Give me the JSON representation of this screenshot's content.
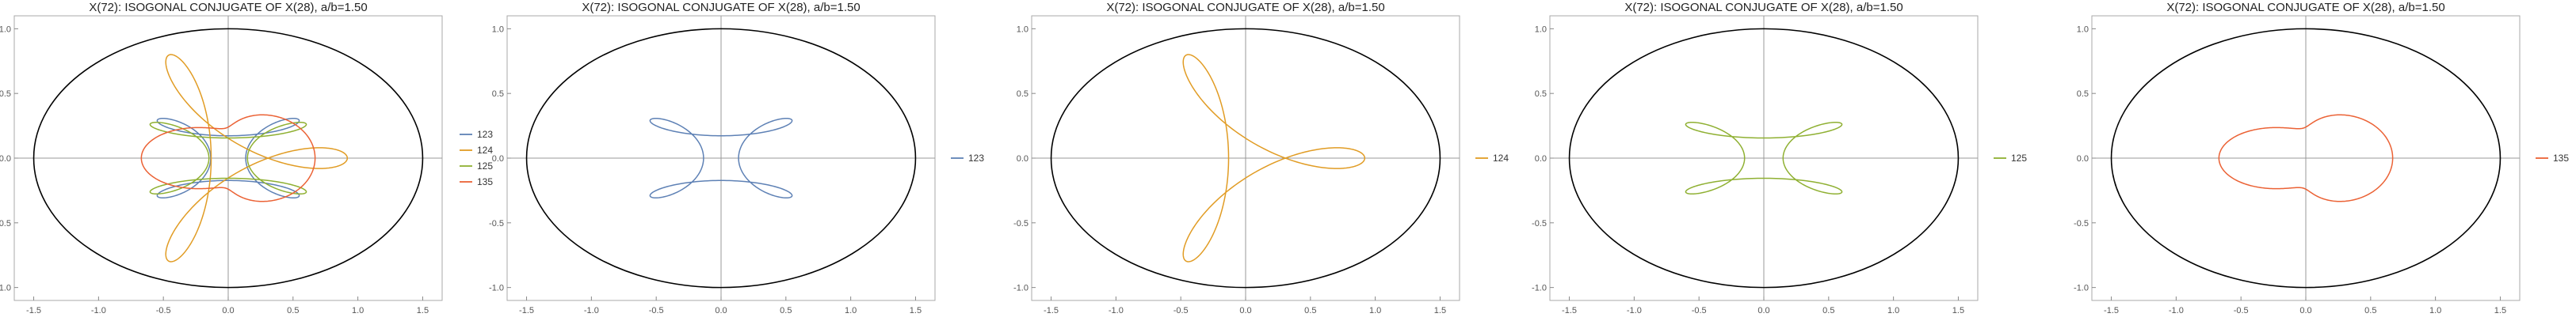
{
  "chart_data": [
    {
      "type": "line",
      "title": "X(72): ISOGONAL CONJUGATE OF X(28), a/b=1.50",
      "xlim": [
        -1.65,
        1.65
      ],
      "ylim": [
        -1.1,
        1.1
      ],
      "x_ticks": [
        "-1.5",
        "-1.0",
        "-0.5",
        "0.0",
        "0.5",
        "1.0",
        "1.5"
      ],
      "y_ticks": [
        "1.0",
        "0.5",
        "0.0",
        "-0.5",
        "-1.0"
      ],
      "ellipse": {
        "a": 1.5,
        "b": 1.0,
        "color": "#000000"
      },
      "legend_position": "right",
      "series": [
        {
          "name": "123",
          "color": "#5E81B5",
          "shape": "cardioid",
          "sx": 1.0,
          "sy": 1.0,
          "rot": 0
        },
        {
          "name": "124",
          "color": "#E19C24",
          "shape": "trefoil",
          "sx": 1.0,
          "sy": 1.0,
          "rot": 0
        },
        {
          "name": "125",
          "color": "#8FB032",
          "shape": "cardioid",
          "sx": 1.1,
          "sy": 0.9,
          "rot": 0
        },
        {
          "name": "135",
          "color": "#EB6235",
          "shape": "loops",
          "sx": 1.0,
          "sy": 1.0,
          "rot": 0
        }
      ]
    },
    {
      "type": "line",
      "title": "X(72): ISOGONAL CONJUGATE OF X(28), a/b=1.50",
      "xlim": [
        -1.65,
        1.65
      ],
      "ylim": [
        -1.1,
        1.1
      ],
      "x_ticks": [
        "-1.5",
        "-1.0",
        "-0.5",
        "0.0",
        "0.5",
        "1.0",
        "1.5"
      ],
      "y_ticks": [
        "1.0",
        "0.5",
        "0.0",
        "-0.5",
        "-1.0"
      ],
      "ellipse": {
        "a": 1.5,
        "b": 1.0,
        "color": "#000000"
      },
      "legend_position": "right",
      "series": [
        {
          "name": "123",
          "color": "#5E81B5",
          "shape": "cardioid",
          "sx": 1.0,
          "sy": 1.0,
          "rot": 0
        }
      ]
    },
    {
      "type": "line",
      "title": "X(72): ISOGONAL CONJUGATE OF X(28), a/b=1.50",
      "xlim": [
        -1.65,
        1.65
      ],
      "ylim": [
        -1.1,
        1.1
      ],
      "x_ticks": [
        "-1.5",
        "-1.0",
        "-0.5",
        "0.0",
        "0.5",
        "1.0",
        "1.5"
      ],
      "y_ticks": [
        "1.0",
        "0.5",
        "0.0",
        "-0.5",
        "-1.0"
      ],
      "ellipse": {
        "a": 1.5,
        "b": 1.0,
        "color": "#000000"
      },
      "legend_position": "right",
      "series": [
        {
          "name": "124",
          "color": "#E19C24",
          "shape": "trefoil",
          "sx": 1.0,
          "sy": 1.0,
          "rot": 0
        }
      ]
    },
    {
      "type": "line",
      "title": "X(72): ISOGONAL CONJUGATE OF X(28), a/b=1.50",
      "xlim": [
        -1.65,
        1.65
      ],
      "ylim": [
        -1.1,
        1.1
      ],
      "x_ticks": [
        "-1.5",
        "-1.0",
        "-0.5",
        "0.0",
        "0.5",
        "1.0",
        "1.5"
      ],
      "y_ticks": [
        "1.0",
        "0.5",
        "0.0",
        "-0.5",
        "-1.0"
      ],
      "ellipse": {
        "a": 1.5,
        "b": 1.0,
        "color": "#000000"
      },
      "legend_position": "right",
      "series": [
        {
          "name": "125",
          "color": "#8FB032",
          "shape": "cardioid",
          "sx": 1.1,
          "sy": 0.9,
          "rot": 0
        }
      ]
    },
    {
      "type": "line",
      "title": "X(72): ISOGONAL CONJUGATE OF X(28), a/b=1.50",
      "xlim": [
        -1.65,
        1.65
      ],
      "ylim": [
        -1.1,
        1.1
      ],
      "x_ticks": [
        "-1.5",
        "-1.0",
        "-0.5",
        "0.0",
        "0.5",
        "1.0",
        "1.5"
      ],
      "y_ticks": [
        "1.0",
        "0.5",
        "0.0",
        "-0.5",
        "-1.0"
      ],
      "ellipse": {
        "a": 1.5,
        "b": 1.0,
        "color": "#000000"
      },
      "legend_position": "right",
      "series": [
        {
          "name": "135",
          "color": "#EB6235",
          "shape": "loops",
          "sx": 1.0,
          "sy": 1.0,
          "rot": 0
        }
      ]
    }
  ]
}
